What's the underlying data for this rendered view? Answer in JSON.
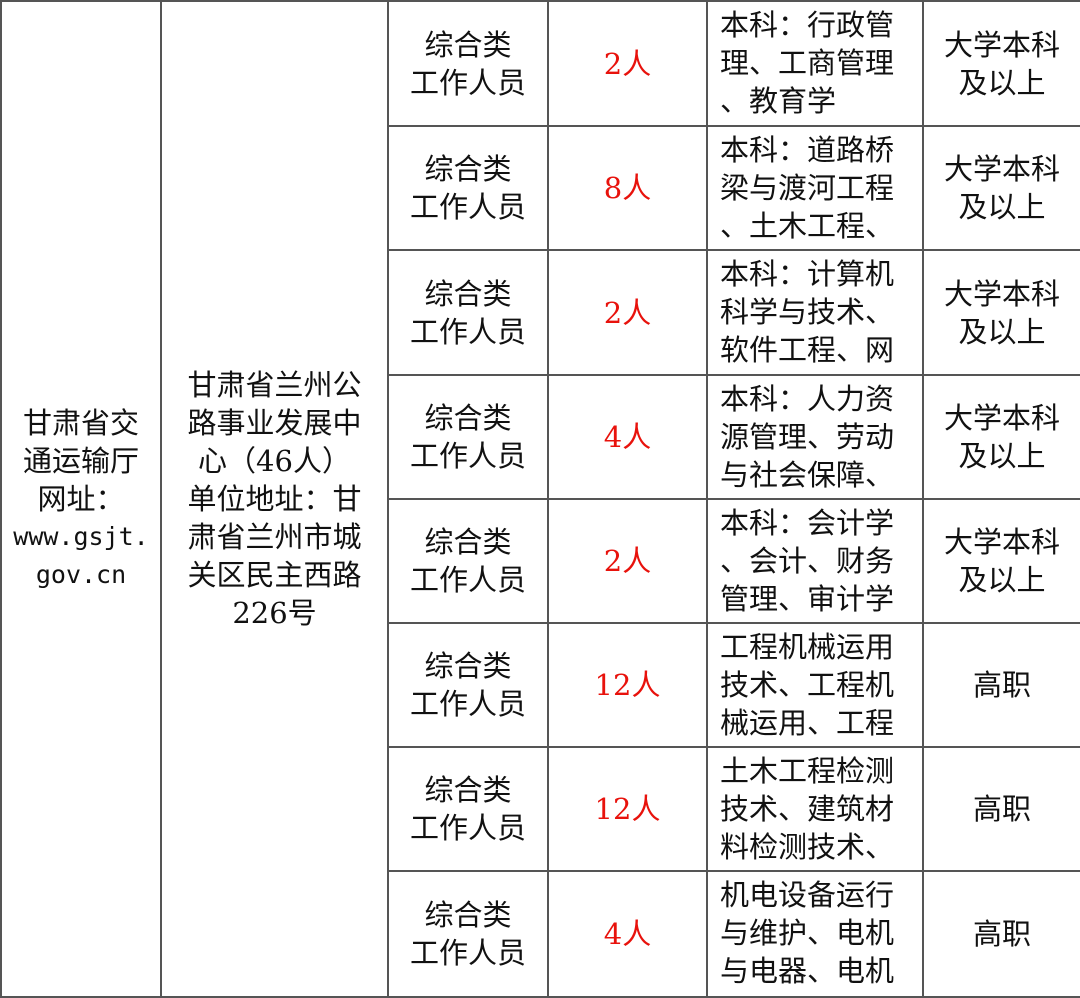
{
  "department": {
    "lines": [
      "甘肃省交",
      "通运输厅",
      "网址：",
      "www.gsjt.",
      "gov.cn"
    ]
  },
  "unit": {
    "lines": [
      "甘肃省兰州公",
      "路事业发展中",
      "心（46人）",
      "单位地址：甘",
      "肃省兰州市城",
      "关区民主西路",
      "226号"
    ]
  },
  "colors": {
    "count": "#e8120c",
    "border": "#555555"
  },
  "rows": [
    {
      "position": [
        "综合类",
        "工作人员"
      ],
      "count": "2人",
      "major": [
        "本科：行政管",
        "理、工商管理",
        "、教育学"
      ],
      "education": [
        "大学本科",
        "及以上"
      ]
    },
    {
      "position": [
        "综合类",
        "工作人员"
      ],
      "count": "8人",
      "major": [
        "本科：道路桥",
        "梁与渡河工程",
        "、土木工程、"
      ],
      "education": [
        "大学本科",
        "及以上"
      ]
    },
    {
      "position": [
        "综合类",
        "工作人员"
      ],
      "count": "2人",
      "major": [
        "本科：计算机",
        "科学与技术、",
        "软件工程、网"
      ],
      "education": [
        "大学本科",
        "及以上"
      ]
    },
    {
      "position": [
        "综合类",
        "工作人员"
      ],
      "count": "4人",
      "major": [
        "本科：人力资",
        "源管理、劳动",
        "与社会保障、"
      ],
      "education": [
        "大学本科",
        "及以上"
      ]
    },
    {
      "position": [
        "综合类",
        "工作人员"
      ],
      "count": "2人",
      "major": [
        "本科：会计学",
        "、会计、财务",
        "管理、审计学"
      ],
      "education": [
        "大学本科",
        "及以上"
      ]
    },
    {
      "position": [
        "综合类",
        "工作人员"
      ],
      "count": "12人",
      "major": [
        "工程机械运用",
        "技术、工程机",
        "械运用、工程"
      ],
      "education": [
        "高职"
      ]
    },
    {
      "position": [
        "综合类",
        "工作人员"
      ],
      "count": "12人",
      "major": [
        "土木工程检测",
        "技术、建筑材",
        "料检测技术、"
      ],
      "education": [
        "高职"
      ]
    },
    {
      "position": [
        "综合类",
        "工作人员"
      ],
      "count": "4人",
      "major": [
        "机电设备运行",
        "与维护、电机",
        "与电器、电机"
      ],
      "education": [
        "高职"
      ]
    }
  ]
}
